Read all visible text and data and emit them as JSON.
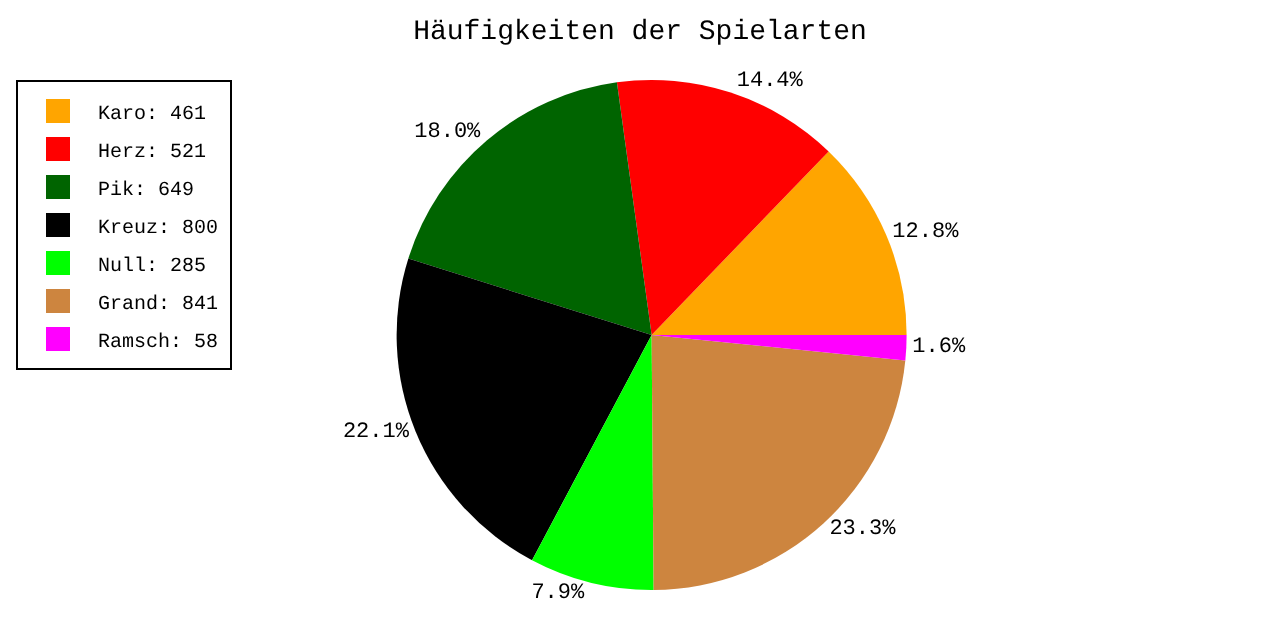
{
  "chart_data": {
    "type": "pie",
    "title": "Häufigkeiten der Spielarten",
    "categories": [
      "Karo: 461",
      "Herz: 521",
      "Pik: 649",
      "Kreuz: 800",
      "Null: 285",
      "Grand: 841",
      "Ramsch: 58"
    ],
    "values": [
      12.8,
      14.4,
      18.0,
      22.1,
      7.9,
      23.3,
      1.6
    ],
    "colors": [
      "#ffa500",
      "#ff0000",
      "#006400",
      "#000000",
      "#00ff00",
      "#cd853f",
      "#ff00ff"
    ],
    "value_labels": [
      "12.8%",
      "14.4%",
      "18.0%",
      "22.1%",
      "7.9%",
      "23.3%",
      "1.6%"
    ],
    "legend": "top left"
  }
}
